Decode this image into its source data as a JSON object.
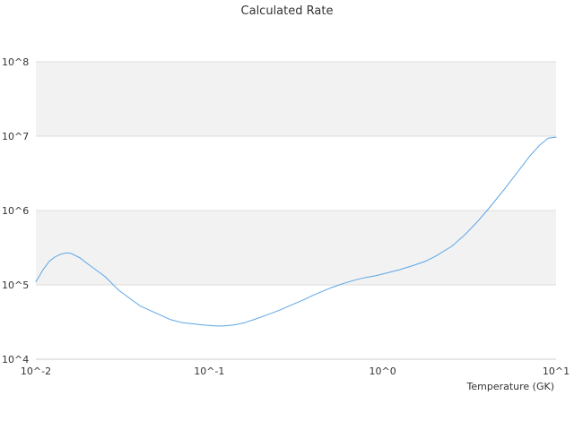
{
  "chart_data": {
    "type": "line",
    "title": "Calculated Rate",
    "xlabel": "Temperature (GK)",
    "ylabel": "",
    "x_scale": "log",
    "y_scale": "log",
    "xlim": [
      0.01,
      10
    ],
    "ylim": [
      10000,
      100000000
    ],
    "x_tick_labels": [
      "10^-2",
      "10^-1",
      "10^0",
      "10^1"
    ],
    "y_tick_labels": [
      "10^4",
      "10^5",
      "10^6",
      "10^7",
      "10^8"
    ],
    "grid": "alternating horizontal bands",
    "legend": "none",
    "colors": {
      "line": "#5aa5e6",
      "band": "#f2f2f2",
      "gridline": "#dddddd",
      "text": "#333333"
    },
    "series": [
      {
        "x": [
          0.01,
          0.011,
          0.012,
          0.013,
          0.014,
          0.015,
          0.016,
          0.018,
          0.02,
          0.025,
          0.03,
          0.04,
          0.05,
          0.06,
          0.07,
          0.08,
          0.09,
          0.1,
          0.11,
          0.12,
          0.13,
          0.14,
          0.15,
          0.16,
          0.18,
          0.2,
          0.25,
          0.3,
          0.35,
          0.4,
          0.45,
          0.5,
          0.6,
          0.7,
          0.8,
          0.9,
          1.0,
          1.25,
          1.5,
          1.75,
          2.0,
          2.5,
          3.0,
          3.5,
          4.0,
          5.0,
          6.0,
          7.0,
          8.0,
          9.0,
          10.0
        ],
        "y": [
          110000,
          160000,
          210000,
          240000,
          260000,
          270000,
          265000,
          230000,
          190000,
          130000,
          85000,
          52000,
          41000,
          34000,
          31000,
          30000,
          29000,
          28500,
          28000,
          28000,
          28500,
          29000,
          30000,
          31000,
          34000,
          37000,
          45000,
          54000,
          63000,
          73000,
          82000,
          91000,
          105000,
          117000,
          126000,
          132000,
          140000,
          160000,
          182000,
          206000,
          240000,
          330000,
          480000,
          700000,
          1000000,
          1900000,
          3300000,
          5300000,
          7500000,
          9400000,
          9700000
        ]
      }
    ]
  }
}
